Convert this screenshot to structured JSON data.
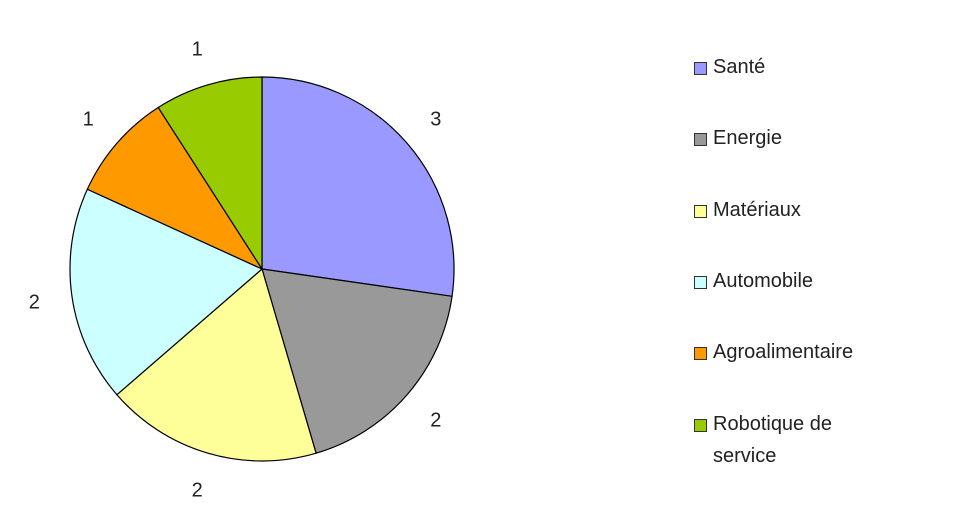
{
  "chart_data": {
    "type": "pie",
    "title": "",
    "categories": [
      "Santé",
      "Energie",
      "Matériaux",
      "Automobile",
      "Agroalimentaire",
      "Robotique de service"
    ],
    "values": [
      3,
      2,
      2,
      2,
      1,
      1
    ],
    "data_labels": [
      "3",
      "2",
      "2",
      "2",
      "1",
      "1"
    ],
    "colors": [
      "#9999ff",
      "#999999",
      "#ffff99",
      "#ccffff",
      "#ff9900",
      "#99cc00"
    ],
    "start_angle_deg": 0,
    "direction": "clockwise",
    "legend_position": "right"
  }
}
